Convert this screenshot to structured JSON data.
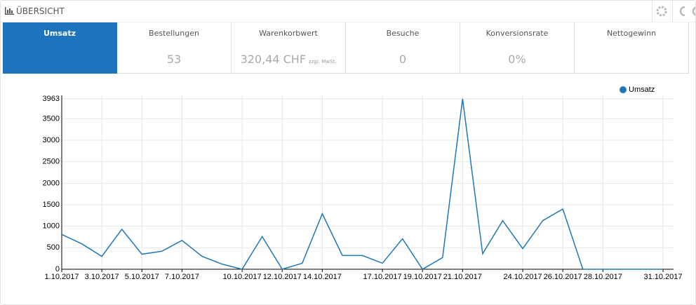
{
  "header": {
    "title": "ÜBERSICHT"
  },
  "kpis": [
    {
      "label": "Umsatz",
      "value": null
    },
    {
      "label": "Bestellungen",
      "value": "53"
    },
    {
      "label": "Warenkorbwert",
      "value": "320,44 CHF",
      "note": "zzgl. MwSt."
    },
    {
      "label": "Besuche",
      "value": "0"
    },
    {
      "label": "Konversionsrate",
      "value": "0%"
    },
    {
      "label": "Nettogewinn",
      "value": null
    }
  ],
  "chart_data": {
    "type": "line",
    "categories": [
      "1.10.2017",
      null,
      "3.10.2017",
      null,
      "5.10.2017",
      null,
      "7.10.2017",
      null,
      null,
      "10.10.2017",
      null,
      "12.10.2017",
      null,
      "14.10.2017",
      null,
      null,
      "17.10.2017",
      null,
      "19.10.2017",
      null,
      "21.10.2017",
      null,
      null,
      "24.10.2017",
      null,
      "26.10.2017",
      null,
      "28.10.2017",
      null,
      null,
      "31.10.2017"
    ],
    "series": [
      {
        "name": "Umsatz",
        "color": "#1f77b4",
        "values": [
          810,
          590,
          300,
          930,
          350,
          420,
          670,
          300,
          120,
          0,
          760,
          0,
          140,
          1290,
          320,
          320,
          140,
          710,
          0,
          270,
          3963,
          360,
          1130,
          480,
          1130,
          1400,
          0,
          0,
          0,
          0,
          0
        ]
      }
    ],
    "ylim": [
      0,
      3963
    ],
    "yticks": [
      0,
      500,
      1000,
      1500,
      2000,
      2500,
      3000,
      3500,
      3963
    ],
    "grid": true,
    "legend": "top-right"
  }
}
